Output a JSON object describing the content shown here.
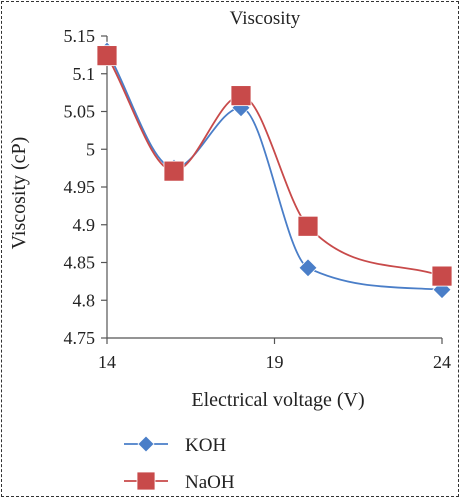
{
  "chart_data": {
    "type": "line",
    "title": "Viscosity",
    "xlabel": "Electrical voltage (V)",
    "ylabel": "Viscosity (cP)",
    "xlim": [
      14,
      24
    ],
    "ylim": [
      4.75,
      5.15
    ],
    "x_ticks": [
      {
        "value": 14,
        "label": "14"
      },
      {
        "value": 19,
        "label": "19"
      },
      {
        "value": 24,
        "label": "24"
      }
    ],
    "y_ticks": [
      {
        "value": 4.75,
        "label": "4.75"
      },
      {
        "value": 4.8,
        "label": "4.8"
      },
      {
        "value": 4.85,
        "label": "4.85"
      },
      {
        "value": 4.9,
        "label": "4.9"
      },
      {
        "value": 4.95,
        "label": "4.95"
      },
      {
        "value": 5.0,
        "label": "5"
      },
      {
        "value": 5.05,
        "label": "5.05"
      },
      {
        "value": 5.1,
        "label": "5.1"
      },
      {
        "value": 5.15,
        "label": "5.15"
      }
    ],
    "grid": false,
    "smooth": true,
    "legend_position": "bottom-left",
    "series": [
      {
        "name": "KOH",
        "color": "#4a7ec8",
        "marker": "diamond",
        "x": [
          14,
          16,
          18,
          20,
          24
        ],
        "values": [
          5.13,
          4.975,
          5.055,
          4.843,
          4.814
        ]
      },
      {
        "name": "NaOH",
        "color": "#c84a4a",
        "marker": "square",
        "x": [
          14,
          16,
          18,
          20,
          24
        ],
        "values": [
          5.124,
          4.971,
          5.071,
          4.898,
          4.832
        ]
      }
    ]
  }
}
